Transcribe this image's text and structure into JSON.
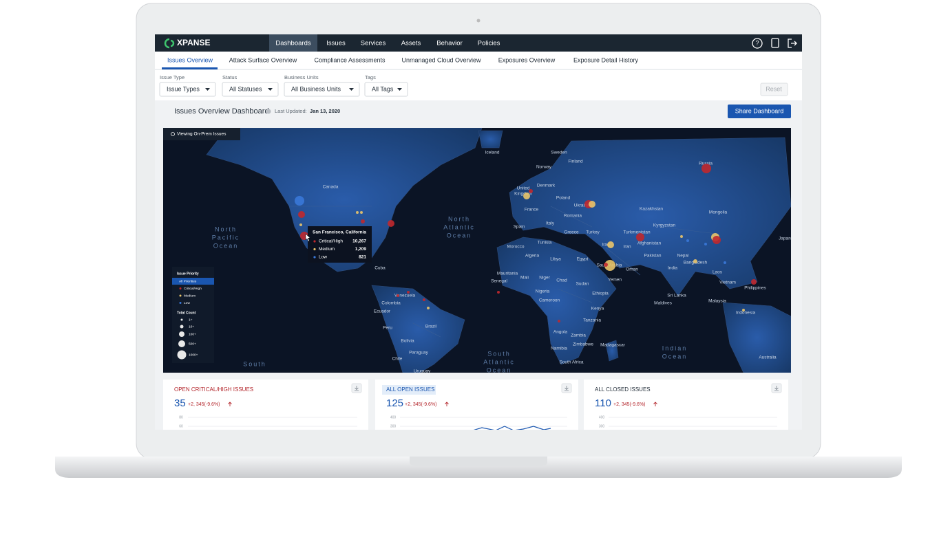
{
  "app": {
    "logo": "XPANSE",
    "nav": [
      "Dashboards",
      "Issues",
      "Services",
      "Assets",
      "Behavior",
      "Policies"
    ],
    "tabs": [
      "Issues Overview",
      "Attack Surface Overview",
      "Compliance Assessments",
      "Unmanaged Cloud Overview",
      "Exposures Overview",
      "Exposure Detail History"
    ]
  },
  "filters": [
    {
      "label": "Issue Type",
      "value": "Issue Types"
    },
    {
      "label": "Status",
      "value": "All Statuses"
    },
    {
      "label": "Business Units",
      "value": "All Business Units"
    },
    {
      "label": "Tags",
      "value": "All Tags"
    }
  ],
  "reset": "Reset",
  "dashboard": {
    "title": "Issues Overview Dashboard",
    "last_updated_label": "Last Updated:",
    "last_updated": "Jan 13, 2020",
    "share": "Share Dashboard"
  },
  "map": {
    "badge": "Viewing On-Prem Issues",
    "labels": [
      "Iceland",
      "Sweden",
      "Finland",
      "Norway",
      "Russia",
      "Canada",
      "Denmark",
      "United",
      "Kingdom",
      "Poland",
      "Ukraine",
      "Kazakhstan",
      "Mongolia",
      "France",
      "Romania",
      "Kyrgyzstan",
      "Spain",
      "Italy",
      "Greece",
      "Turkey",
      "Turkmenistan",
      "Afghanistan",
      "Japan",
      "Tunisia",
      "Morocco",
      "Iraq",
      "Iran",
      "Pakistan",
      "Nepal",
      "Algeria",
      "Libya",
      "Egypt",
      "Saudi Arabia",
      "Oman",
      "India",
      "Bangladesh",
      "Cuba",
      "Mauritania",
      "Mali",
      "Niger",
      "Chad",
      "Sudan",
      "Yemen",
      "Laos",
      "Vietnam",
      "Philippines",
      "Senegal",
      "Nigeria",
      "Ethiopia",
      "Sri Lanka",
      "Venezuela",
      "Colombia",
      "Cameroon",
      "Maldives",
      "Malaysia",
      "Ecuador",
      "Kenya",
      "Indonesia",
      "Peru",
      "Brazil",
      "Tanzania",
      "Bolivia",
      "Angola",
      "Zambia",
      "Paraguay",
      "Zimbabwe",
      "Madagascar",
      "Namibia",
      "Chile",
      "South Africa",
      "Australia",
      "Uruguay"
    ],
    "oceans": [
      [
        "North",
        "Pacific",
        "Ocean"
      ],
      [
        "North",
        "Atlantic",
        "Ocean"
      ],
      [
        "South",
        "Atlantic",
        "Ocean"
      ],
      [
        "Indian",
        "Ocean"
      ],
      [
        "South"
      ]
    ],
    "tooltip": {
      "title": "San Francisco, California",
      "rows": [
        {
          "label": "Critical/High",
          "value": "10,267"
        },
        {
          "label": "Medium",
          "value": "1,209"
        },
        {
          "label": "Low",
          "value": "821"
        }
      ]
    },
    "legend": {
      "priority_title": "Issue Priority",
      "priorities": [
        "All Priorities",
        "Critical/High",
        "Medium",
        "Low"
      ],
      "count_title": "Total Count",
      "counts": [
        "1+",
        "10+",
        "100+",
        "500+",
        "1000+"
      ]
    }
  },
  "cards": [
    {
      "title": "OPEN CRITICAL/HIGH ISSUES",
      "value": "35",
      "delta": "+2, 345(-9.6%)",
      "ticks": [
        "80",
        "60"
      ]
    },
    {
      "title": "ALL OPEN ISSUES",
      "value": "125",
      "delta": "+2, 345(-9.6%)",
      "ticks": [
        "400",
        "300"
      ]
    },
    {
      "title": "ALL CLOSED ISSUES",
      "value": "110",
      "delta": "+2, 345(-9.6%)",
      "ticks": [
        "400",
        "300"
      ]
    }
  ]
}
